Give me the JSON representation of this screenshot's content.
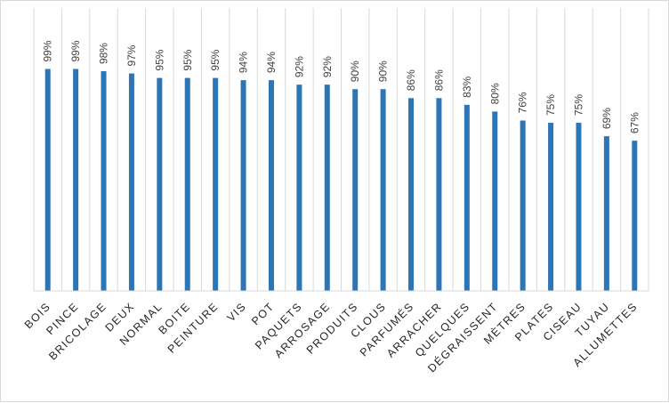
{
  "chart_data": {
    "type": "bar",
    "title": "",
    "xlabel": "",
    "ylabel": "",
    "ylim": [
      0,
      100
    ],
    "grid": "vertical category dividers",
    "legend": "none",
    "bar_color": "#2E75B6",
    "grid_color": "#d9d9d9",
    "categories": [
      "BOIS",
      "PINCE",
      "BRICOLAGE",
      "DEUX",
      "NORMAL",
      "BOITE",
      "PEINTURE",
      "VIS",
      "POT",
      "PAQUETS",
      "ARROSAGE",
      "PRODUITS",
      "CLOUS",
      "PARFUMÉS",
      "ARRACHER",
      "QUELQUES",
      "DÉGRAISSENT",
      "MÈTRES",
      "PLATES",
      "CISEAU",
      "TUYAU",
      "ALLUMETTES"
    ],
    "values": [
      99,
      99,
      98,
      97,
      95,
      95,
      95,
      94,
      94,
      92,
      92,
      90,
      90,
      86,
      86,
      83,
      80,
      76,
      75,
      75,
      69,
      67
    ],
    "data_labels": [
      "99%",
      "99%",
      "98%",
      "97%",
      "95%",
      "95%",
      "95%",
      "94%",
      "94%",
      "92%",
      "92%",
      "90%",
      "90%",
      "86%",
      "86%",
      "83%",
      "80%",
      "76%",
      "75%",
      "75%",
      "69%",
      "67%"
    ]
  }
}
